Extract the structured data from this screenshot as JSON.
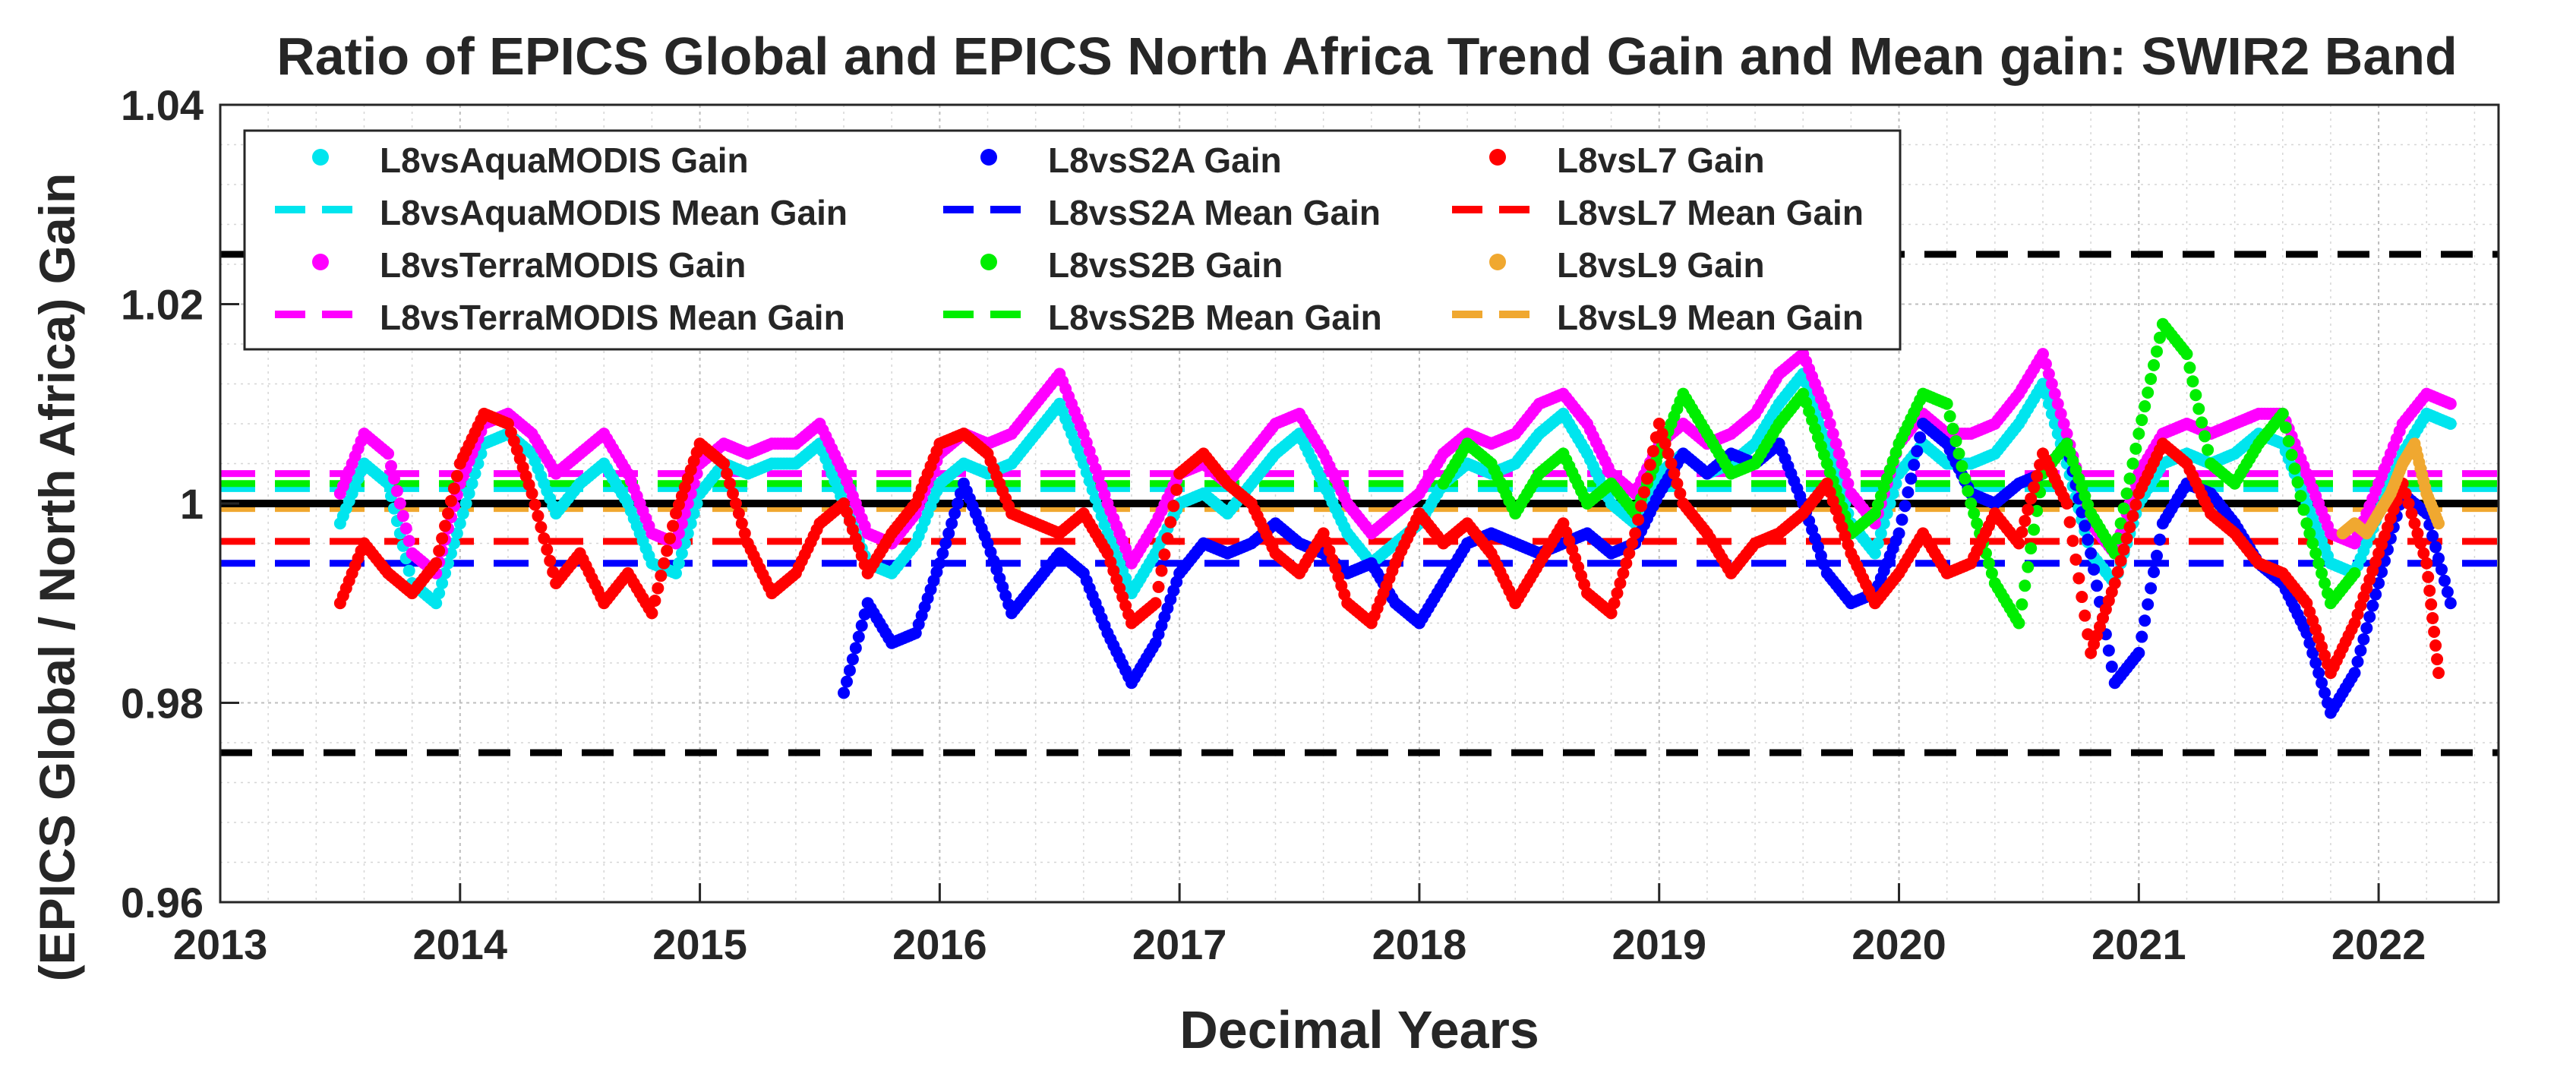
{
  "chart_data": {
    "type": "scatter",
    "title": "Ratio of EPICS Global and EPICS North Africa Trend Gain and Mean gain: SWIR2 Band",
    "xlabel": "Decimal Years",
    "ylabel": "(EPICS Global / North Africa) Gain",
    "xlim": [
      2013,
      2022.5
    ],
    "ylim": [
      0.96,
      1.04
    ],
    "x_ticks": [
      2013,
      2014,
      2015,
      2016,
      2017,
      2018,
      2019,
      2020,
      2021,
      2022
    ],
    "y_ticks": [
      0.96,
      0.98,
      1.0,
      1.02,
      1.04
    ],
    "x_tick_labels": [
      "2013",
      "2014",
      "2015",
      "2016",
      "2017",
      "2018",
      "2019",
      "2020",
      "2021",
      "2022"
    ],
    "y_tick_labels": [
      "0.96",
      "0.98",
      "1",
      "1.02",
      "1.04"
    ],
    "grid": true,
    "legend_position": "top-left",
    "reference_lines": [
      {
        "name": "unity",
        "y": 1.0,
        "color": "#000000",
        "style": "solid"
      },
      {
        "name": "upper-bound",
        "y": 1.025,
        "color": "#000000",
        "style": "dashed"
      },
      {
        "name": "lower-bound",
        "y": 0.975,
        "color": "#000000",
        "style": "dashed"
      }
    ],
    "series": [
      {
        "id": "aqua",
        "name": "L8vsAquaMODIS Gain",
        "mean_name": "L8vsAquaMODIS Mean Gain",
        "color": "#00e5ee",
        "mean": 1.0015,
        "x": [
          2013.5,
          2013.6,
          2013.7,
          2013.8,
          2013.9,
          2014.0,
          2014.1,
          2014.2,
          2014.3,
          2014.4,
          2014.5,
          2014.6,
          2014.7,
          2014.8,
          2014.9,
          2015.0,
          2015.1,
          2015.2,
          2015.3,
          2015.4,
          2015.5,
          2015.6,
          2015.7,
          2015.8,
          2015.9,
          2016.0,
          2016.1,
          2016.2,
          2016.3,
          2016.4,
          2016.5,
          2016.6,
          2016.7,
          2016.8,
          2016.9,
          2017.0,
          2017.1,
          2017.2,
          2017.3,
          2017.4,
          2017.5,
          2017.6,
          2017.7,
          2017.8,
          2017.9,
          2018.0,
          2018.1,
          2018.2,
          2018.3,
          2018.4,
          2018.5,
          2018.6,
          2018.7,
          2018.8,
          2018.9,
          2019.0,
          2019.1,
          2019.2,
          2019.3,
          2019.4,
          2019.5,
          2019.6,
          2019.7,
          2019.8,
          2019.9,
          2020.0,
          2020.1,
          2020.2,
          2020.3,
          2020.4,
          2020.5,
          2020.6,
          2020.7,
          2020.8,
          2020.9,
          2021.0,
          2021.1,
          2021.2,
          2021.3,
          2021.4,
          2021.5,
          2021.6,
          2021.7,
          2021.8,
          2021.9,
          2022.0,
          2022.1,
          2022.2,
          2022.3
        ],
        "y": [
          0.998,
          1.004,
          1.002,
          0.992,
          0.99,
          0.998,
          1.006,
          1.007,
          1.005,
          0.999,
          1.002,
          1.004,
          1.0,
          0.994,
          0.993,
          1.001,
          1.004,
          1.003,
          1.004,
          1.004,
          1.006,
          1.0,
          0.994,
          0.993,
          0.996,
          1.002,
          1.004,
          1.003,
          1.004,
          1.007,
          1.01,
          1.004,
          0.997,
          0.991,
          0.995,
          1.0,
          1.001,
          0.999,
          1.002,
          1.005,
          1.007,
          1.002,
          0.997,
          0.994,
          0.996,
          0.998,
          1.002,
          1.004,
          1.003,
          1.004,
          1.007,
          1.009,
          1.005,
          1.0,
          0.998,
          1.003,
          1.005,
          1.003,
          1.004,
          1.006,
          1.01,
          1.013,
          1.006,
          0.998,
          0.995,
          1.003,
          1.006,
          1.004,
          1.004,
          1.005,
          1.008,
          1.012,
          1.004,
          0.995,
          0.992,
          1.0,
          1.004,
          1.005,
          1.004,
          1.005,
          1.007,
          1.006,
          1.0,
          0.994,
          0.993,
          0.999,
          1.005,
          1.009,
          1.008
        ]
      },
      {
        "id": "terra",
        "name": "L8vsTerraMODIS Gain",
        "mean_name": "L8vsTerraMODIS Mean Gain",
        "color": "#ff00ff",
        "mean": 1.003,
        "x": [
          2013.5,
          2013.6,
          2013.7,
          2013.8,
          2013.9,
          2014.0,
          2014.1,
          2014.2,
          2014.3,
          2014.4,
          2014.5,
          2014.6,
          2014.7,
          2014.8,
          2014.9,
          2015.0,
          2015.1,
          2015.2,
          2015.3,
          2015.4,
          2015.5,
          2015.6,
          2015.7,
          2015.8,
          2015.9,
          2016.0,
          2016.1,
          2016.2,
          2016.3,
          2016.4,
          2016.5,
          2016.6,
          2016.7,
          2016.8,
          2016.9,
          2017.0,
          2017.1,
          2017.2,
          2017.3,
          2017.4,
          2017.5,
          2017.6,
          2017.7,
          2017.8,
          2017.9,
          2018.0,
          2018.1,
          2018.2,
          2018.3,
          2018.4,
          2018.5,
          2018.6,
          2018.7,
          2018.8,
          2018.9,
          2019.0,
          2019.1,
          2019.2,
          2019.3,
          2019.4,
          2019.5,
          2019.6,
          2019.7,
          2019.8,
          2019.9,
          2020.0,
          2020.1,
          2020.2,
          2020.3,
          2020.4,
          2020.5,
          2020.6,
          2020.7,
          2020.8,
          2020.9,
          2021.0,
          2021.1,
          2021.2,
          2021.3,
          2021.4,
          2021.5,
          2021.6,
          2021.7,
          2021.8,
          2021.9,
          2022.0,
          2022.1,
          2022.2,
          2022.3
        ],
        "y": [
          1.001,
          1.007,
          1.005,
          0.995,
          0.993,
          1.002,
          1.008,
          1.009,
          1.007,
          1.003,
          1.005,
          1.007,
          1.003,
          0.997,
          0.996,
          1.004,
          1.006,
          1.005,
          1.006,
          1.006,
          1.008,
          1.003,
          0.997,
          0.996,
          0.999,
          1.005,
          1.007,
          1.006,
          1.007,
          1.01,
          1.013,
          1.007,
          1.0,
          0.994,
          0.998,
          1.003,
          1.004,
          1.002,
          1.005,
          1.008,
          1.009,
          1.005,
          1.0,
          0.997,
          0.999,
          1.001,
          1.005,
          1.007,
          1.006,
          1.007,
          1.01,
          1.011,
          1.008,
          1.003,
          1.001,
          1.006,
          1.008,
          1.006,
          1.007,
          1.009,
          1.013,
          1.015,
          1.009,
          1.001,
          0.998,
          1.006,
          1.009,
          1.007,
          1.007,
          1.008,
          1.011,
          1.015,
          1.007,
          0.998,
          0.995,
          1.003,
          1.007,
          1.008,
          1.007,
          1.008,
          1.009,
          1.009,
          1.003,
          0.997,
          0.996,
          1.002,
          1.008,
          1.011,
          1.01
        ]
      },
      {
        "id": "s2a",
        "name": "L8vsS2A Gain",
        "mean_name": "L8vsS2A Mean Gain",
        "color": "#0000ff",
        "mean": 0.994,
        "x": [
          2015.6,
          2015.7,
          2015.8,
          2015.9,
          2016.0,
          2016.1,
          2016.2,
          2016.3,
          2016.4,
          2016.5,
          2016.6,
          2016.7,
          2016.8,
          2016.9,
          2017.0,
          2017.1,
          2017.2,
          2017.3,
          2017.4,
          2017.5,
          2017.6,
          2017.7,
          2017.8,
          2017.9,
          2018.0,
          2018.1,
          2018.2,
          2018.3,
          2018.4,
          2018.5,
          2018.6,
          2018.7,
          2018.8,
          2018.9,
          2019.0,
          2019.1,
          2019.2,
          2019.3,
          2019.4,
          2019.5,
          2019.6,
          2019.7,
          2019.8,
          2019.9,
          2020.0,
          2020.1,
          2020.2,
          2020.3,
          2020.4,
          2020.5,
          2020.6,
          2020.7,
          2020.8,
          2020.9,
          2021.0,
          2021.1,
          2021.2,
          2021.3,
          2021.4,
          2021.5,
          2021.6,
          2021.7,
          2021.8,
          2021.9,
          2022.0,
          2022.1,
          2022.2,
          2022.3
        ],
        "y": [
          0.981,
          0.99,
          0.986,
          0.987,
          0.994,
          1.002,
          0.996,
          0.989,
          0.992,
          0.995,
          0.993,
          0.987,
          0.982,
          0.986,
          0.993,
          0.996,
          0.995,
          0.996,
          0.998,
          0.996,
          0.995,
          0.993,
          0.994,
          0.99,
          0.988,
          0.992,
          0.996,
          0.997,
          0.996,
          0.995,
          0.996,
          0.997,
          0.995,
          0.996,
          1.001,
          1.005,
          1.003,
          1.005,
          1.004,
          1.006,
          1.0,
          0.993,
          0.99,
          0.991,
          0.997,
          1.008,
          1.006,
          1.001,
          1.0,
          1.002,
          1.003,
          1.006,
          0.995,
          0.982,
          0.985,
          0.998,
          1.002,
          1.001,
          0.998,
          0.994,
          0.992,
          0.987,
          0.979,
          0.983,
          0.992,
          1.001,
          0.999,
          0.99
        ]
      },
      {
        "id": "s2b",
        "name": "L8vsS2B Gain",
        "mean_name": "L8vsS2B Mean Gain",
        "color": "#00ee00",
        "mean": 1.002,
        "x": [
          2018.1,
          2018.2,
          2018.3,
          2018.4,
          2018.5,
          2018.6,
          2018.7,
          2018.8,
          2018.9,
          2019.0,
          2019.1,
          2019.2,
          2019.3,
          2019.4,
          2019.5,
          2019.6,
          2019.7,
          2019.8,
          2019.9,
          2020.0,
          2020.1,
          2020.2,
          2020.3,
          2020.4,
          2020.5,
          2020.6,
          2020.7,
          2020.8,
          2020.9,
          2021.0,
          2021.1,
          2021.2,
          2021.3,
          2021.4,
          2021.5,
          2021.6,
          2021.7,
          2021.8,
          2021.9
        ],
        "y": [
          1.002,
          1.006,
          1.004,
          0.999,
          1.003,
          1.005,
          1.0,
          1.002,
          0.999,
          1.005,
          1.011,
          1.007,
          1.003,
          1.004,
          1.008,
          1.011,
          1.004,
          0.997,
          0.999,
          1.006,
          1.011,
          1.01,
          1.0,
          0.992,
          0.988,
          1.003,
          1.006,
          0.999,
          0.995,
          1.007,
          1.018,
          1.015,
          1.004,
          1.002,
          1.006,
          1.009,
          0.998,
          0.99,
          0.993
        ]
      },
      {
        "id": "l7",
        "name": "L8vsL7 Gain",
        "mean_name": "L8vsL7 Mean Gain",
        "color": "#ff0000",
        "mean": 0.9962,
        "x": [
          2013.5,
          2013.6,
          2013.7,
          2013.8,
          2013.9,
          2014.0,
          2014.1,
          2014.2,
          2014.3,
          2014.4,
          2014.5,
          2014.6,
          2014.7,
          2014.8,
          2014.9,
          2015.0,
          2015.1,
          2015.2,
          2015.3,
          2015.4,
          2015.5,
          2015.6,
          2015.7,
          2015.8,
          2015.9,
          2016.0,
          2016.1,
          2016.2,
          2016.3,
          2016.4,
          2016.5,
          2016.6,
          2016.7,
          2016.8,
          2016.9,
          2017.0,
          2017.1,
          2017.2,
          2017.3,
          2017.4,
          2017.5,
          2017.6,
          2017.7,
          2017.8,
          2017.9,
          2018.0,
          2018.1,
          2018.2,
          2018.3,
          2018.4,
          2018.5,
          2018.6,
          2018.7,
          2018.8,
          2018.9,
          2019.0,
          2019.1,
          2019.2,
          2019.3,
          2019.4,
          2019.5,
          2019.6,
          2019.7,
          2019.8,
          2019.9,
          2020.0,
          2020.1,
          2020.2,
          2020.3,
          2020.4,
          2020.5,
          2020.6,
          2020.7,
          2020.8,
          2020.9,
          2021.0,
          2021.1,
          2021.2,
          2021.3,
          2021.4,
          2021.5,
          2021.6,
          2021.7,
          2021.8,
          2021.9,
          2022.0,
          2022.1,
          2022.2,
          2022.25
        ],
        "y": [
          0.99,
          0.996,
          0.993,
          0.991,
          0.994,
          1.004,
          1.009,
          1.008,
          1.001,
          0.992,
          0.995,
          0.99,
          0.993,
          0.989,
          0.999,
          1.006,
          1.004,
          0.996,
          0.991,
          0.993,
          0.998,
          1.0,
          0.993,
          0.997,
          1.0,
          1.006,
          1.007,
          1.005,
          0.999,
          0.998,
          0.997,
          0.999,
          0.995,
          0.988,
          0.99,
          1.003,
          1.005,
          1.002,
          1.0,
          0.995,
          0.993,
          0.997,
          0.99,
          0.988,
          0.994,
          0.999,
          0.996,
          0.998,
          0.995,
          0.99,
          0.994,
          0.998,
          0.991,
          0.989,
          0.997,
          1.008,
          1.0,
          0.997,
          0.993,
          0.996,
          0.997,
          0.999,
          1.002,
          0.995,
          0.99,
          0.993,
          0.997,
          0.993,
          0.994,
          0.999,
          0.996,
          1.005,
          1.0,
          0.985,
          0.992,
          1.001,
          1.006,
          1.004,
          0.999,
          0.997,
          0.994,
          0.993,
          0.99,
          0.983,
          0.988,
          0.995,
          1.002,
          0.994,
          0.983
        ]
      },
      {
        "id": "l9",
        "name": "L8vsL9 Gain",
        "mean_name": "L8vsL9 Mean Gain",
        "color": "#f0a830",
        "mean": 0.9995,
        "x": [
          2021.85,
          2021.9,
          2021.95,
          2022.0,
          2022.05,
          2022.1,
          2022.15,
          2022.2,
          2022.25
        ],
        "y": [
          0.997,
          0.998,
          0.997,
          0.999,
          1.001,
          1.004,
          1.006,
          1.001,
          0.998
        ]
      }
    ]
  }
}
